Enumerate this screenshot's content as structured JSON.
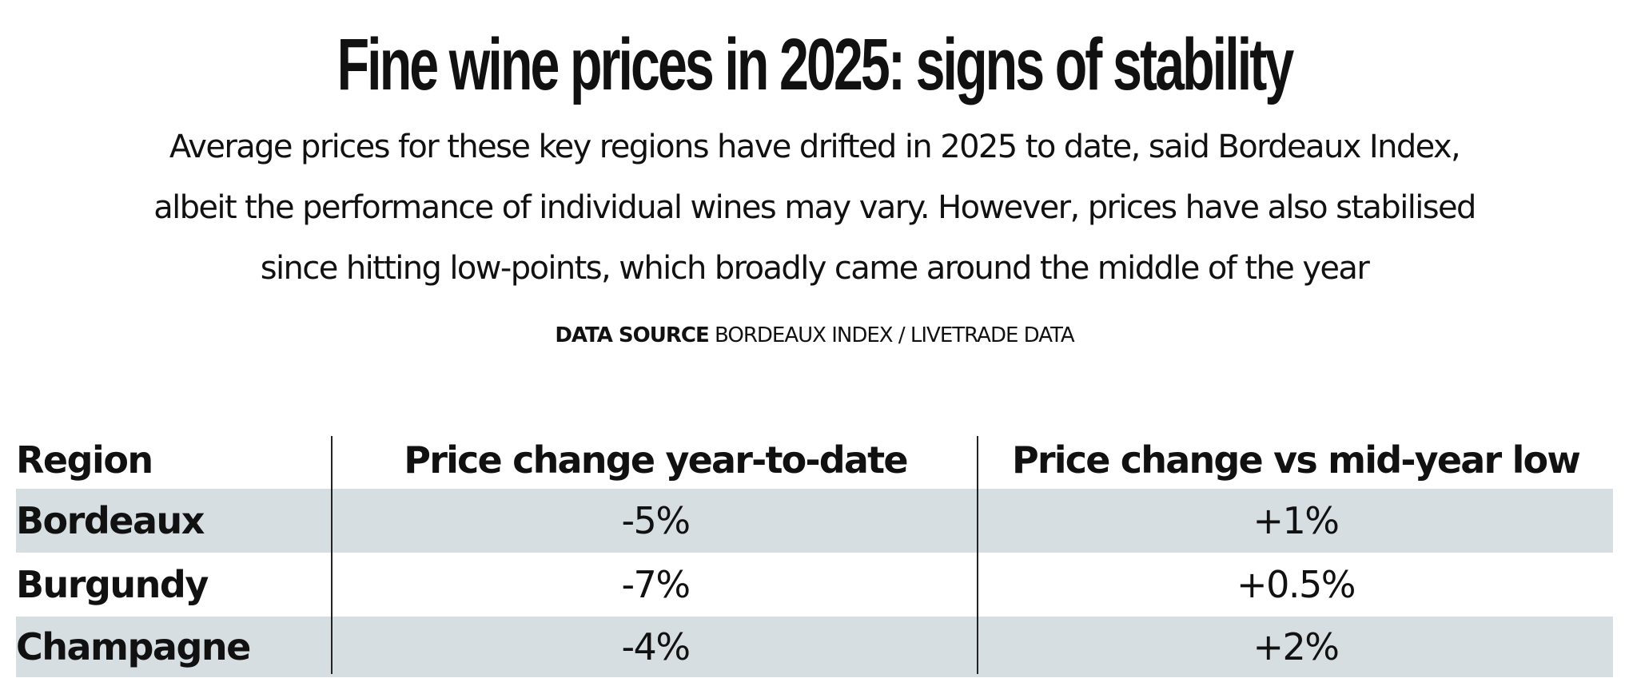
{
  "chart_data": {
    "type": "table",
    "title": "Fine wine prices in 2025: signs of stability",
    "subtitle_lines": [
      "Average prices for these key regions have drifted in 2025 to date, said Bordeaux Index,",
      "albeit the performance of individual wines may vary. However, prices have also stabilised",
      "since hitting low-points, which broadly came around the middle of the year"
    ],
    "source_label": "DATA SOURCE",
    "source_text": "BORDEAUX INDEX / LIVETRADE DATA",
    "columns": [
      "Region",
      "Price change year-to-date",
      "Price change vs mid-year low"
    ],
    "rows": [
      {
        "region": "Bordeaux",
        "ytd": "-5%",
        "vs_low": "+1%"
      },
      {
        "region": "Burgundy",
        "ytd": "-7%",
        "vs_low": "+0.5%"
      },
      {
        "region": "Champagne",
        "ytd": "-4%",
        "vs_low": "+2%"
      }
    ],
    "values_ytd_percent": [
      -5,
      -7,
      -4
    ],
    "values_vs_low_percent": [
      1,
      0.5,
      2
    ],
    "row_shading_color": "#d7dee2",
    "text_color": "#111111"
  }
}
